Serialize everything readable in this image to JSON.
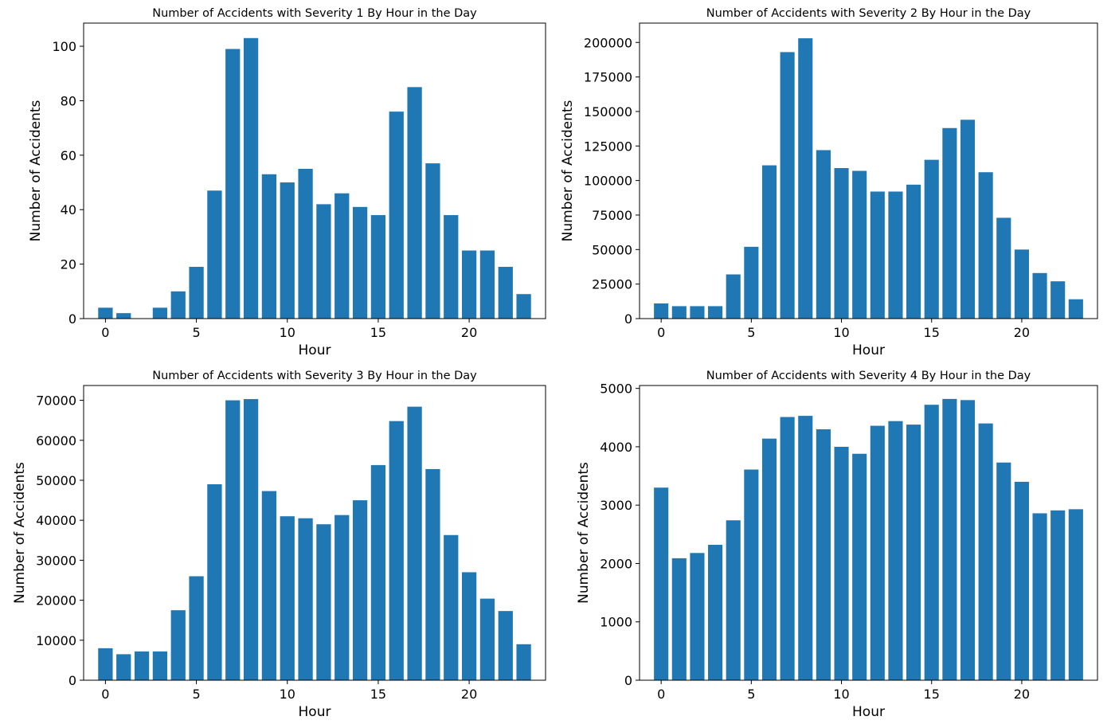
{
  "chart_data": [
    {
      "type": "bar",
      "title": "Number of Accidents with Severity 1 By Hour in the Day",
      "xlabel": "Hour",
      "ylabel": "Number of Accidents",
      "x": [
        0,
        1,
        2,
        3,
        4,
        5,
        6,
        7,
        8,
        9,
        10,
        11,
        12,
        13,
        14,
        15,
        16,
        17,
        18,
        19,
        20,
        21,
        22,
        23
      ],
      "values": [
        4,
        2,
        0,
        4,
        10,
        19,
        47,
        99,
        103,
        53,
        50,
        55,
        42,
        46,
        41,
        38,
        76,
        85,
        57,
        38,
        25,
        25,
        19,
        9
      ],
      "ylim": [
        0,
        108.5
      ],
      "xlim": [
        -1.2,
        24.2
      ],
      "xticks": [
        0,
        5,
        10,
        15,
        20
      ],
      "yticks": [
        0,
        20,
        40,
        60,
        80,
        100
      ],
      "bar_color": "#1f77b4",
      "grid": false
    },
    {
      "type": "bar",
      "title": "Number of Accidents with Severity 2 By Hour in the Day",
      "xlabel": "Hour",
      "ylabel": "Number of Accidents",
      "x": [
        0,
        1,
        2,
        3,
        4,
        5,
        6,
        7,
        8,
        9,
        10,
        11,
        12,
        13,
        14,
        15,
        16,
        17,
        18,
        19,
        20,
        21,
        22,
        23
      ],
      "values": [
        11000,
        9000,
        9000,
        9000,
        32000,
        52000,
        111000,
        193000,
        203000,
        122000,
        109000,
        107000,
        92000,
        92000,
        97000,
        115000,
        138000,
        144000,
        106000,
        73000,
        50000,
        33000,
        27000,
        14000
      ],
      "ylim": [
        0,
        214000
      ],
      "xlim": [
        -1.2,
        24.2
      ],
      "xticks": [
        0,
        5,
        10,
        15,
        20
      ],
      "yticks": [
        0,
        25000,
        50000,
        75000,
        100000,
        125000,
        150000,
        175000,
        200000
      ],
      "bar_color": "#1f77b4",
      "grid": false
    },
    {
      "type": "bar",
      "title": "Number of Accidents with Severity 3 By Hour in the Day",
      "xlabel": "Hour",
      "ylabel": "Number of Accidents",
      "x": [
        0,
        1,
        2,
        3,
        4,
        5,
        6,
        7,
        8,
        9,
        10,
        11,
        12,
        13,
        14,
        15,
        16,
        17,
        18,
        19,
        20,
        21,
        22,
        23
      ],
      "values": [
        8000,
        6500,
        7200,
        7200,
        17500,
        26000,
        49000,
        70000,
        70300,
        47300,
        41000,
        40500,
        39000,
        41300,
        45000,
        53800,
        64800,
        68400,
        52800,
        36300,
        27000,
        20400,
        17300,
        9000
      ],
      "ylim": [
        0,
        73700
      ],
      "xlim": [
        -1.2,
        24.2
      ],
      "xticks": [
        0,
        5,
        10,
        15,
        20
      ],
      "yticks": [
        0,
        10000,
        20000,
        30000,
        40000,
        50000,
        60000,
        70000
      ],
      "bar_color": "#1f77b4",
      "grid": false
    },
    {
      "type": "bar",
      "title": "Number of Accidents with Severity 4 By Hour in the Day",
      "xlabel": "Hour",
      "ylabel": "Number of Accidents",
      "x": [
        0,
        1,
        2,
        3,
        4,
        5,
        6,
        7,
        8,
        9,
        10,
        11,
        12,
        13,
        14,
        15,
        16,
        17,
        18,
        19,
        20,
        21,
        22,
        23
      ],
      "values": [
        3300,
        2090,
        2180,
        2320,
        2740,
        3610,
        4140,
        4510,
        4530,
        4300,
        4000,
        3880,
        4360,
        4440,
        4380,
        4720,
        4820,
        4800,
        4400,
        3730,
        3400,
        2860,
        2910,
        2930
      ],
      "ylim": [
        0,
        5050
      ],
      "xlim": [
        -1.2,
        24.2
      ],
      "xticks": [
        0,
        5,
        10,
        15,
        20
      ],
      "yticks": [
        0,
        1000,
        2000,
        3000,
        4000,
        5000
      ],
      "bar_color": "#1f77b4",
      "grid": false
    }
  ]
}
